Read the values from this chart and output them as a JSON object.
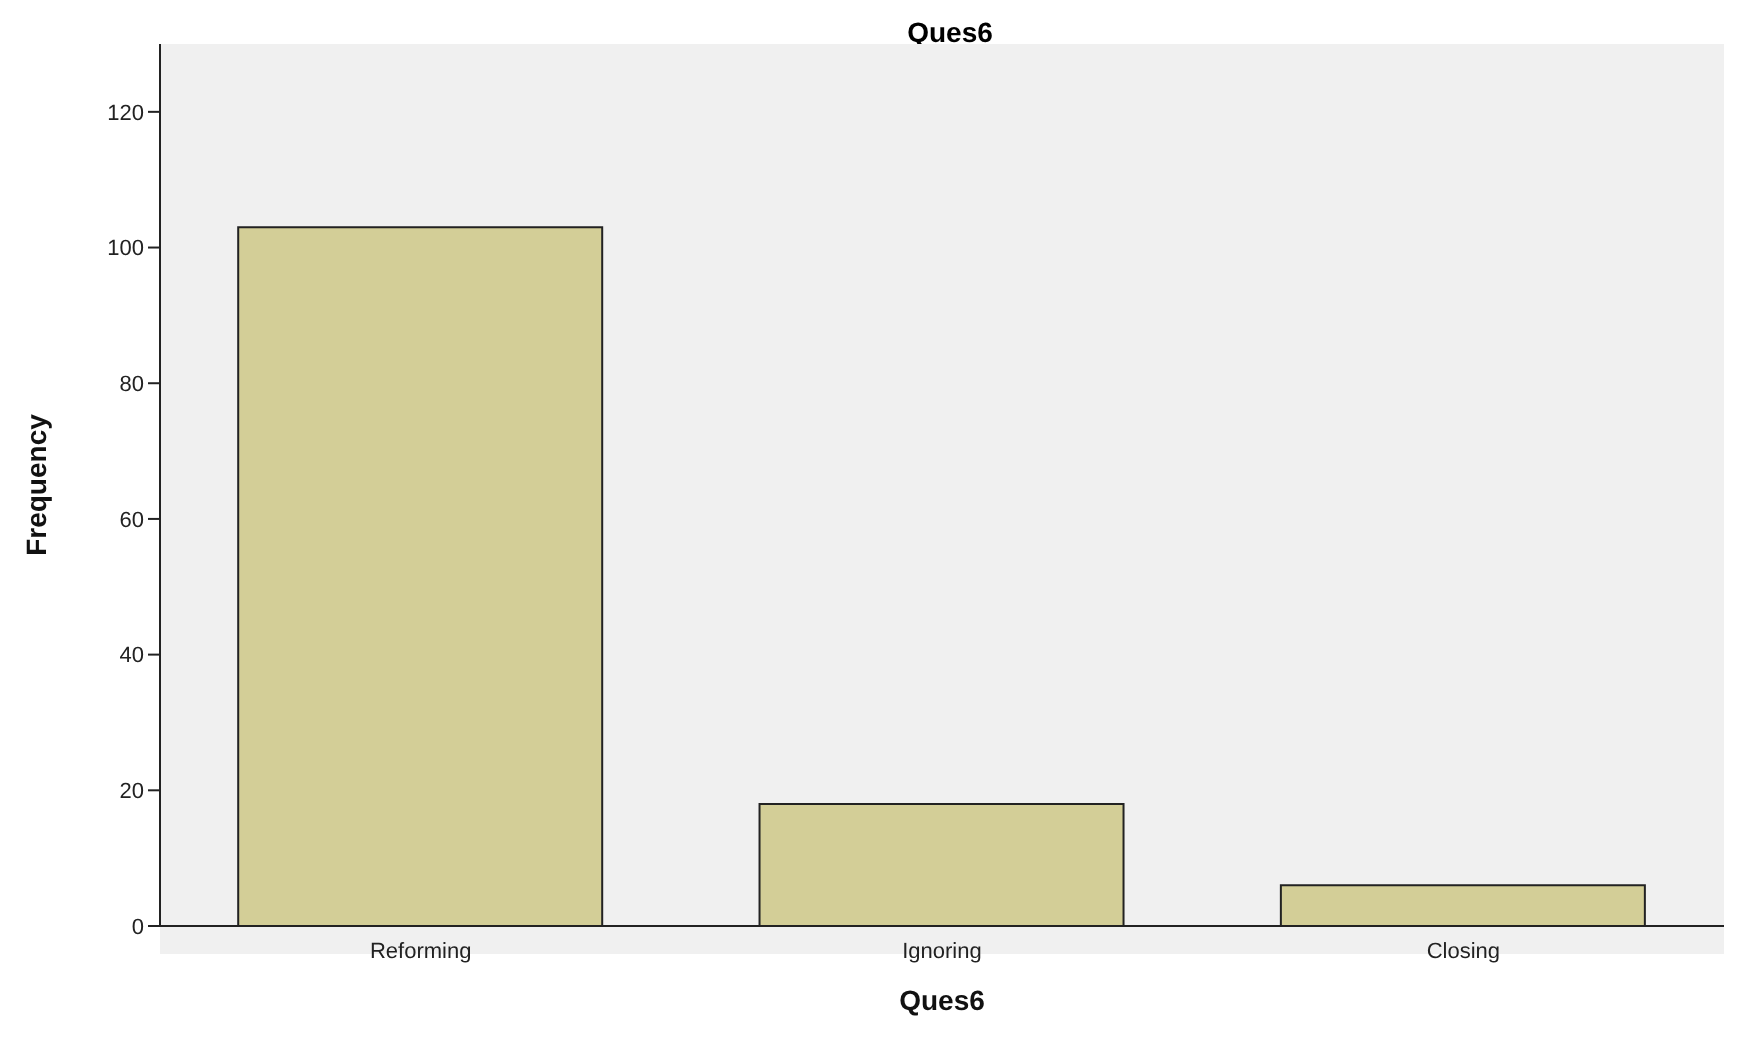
{
  "chart_data": {
    "type": "bar",
    "title": "Ques6",
    "xlabel": "Ques6",
    "ylabel": "Frequency",
    "categories": [
      "Reforming",
      "Ignoring",
      "Closing"
    ],
    "values": [
      103,
      18,
      6
    ],
    "color": "#d3ce97",
    "ylim": [
      0,
      130
    ],
    "yticks": [
      0,
      20,
      40,
      60,
      80,
      100,
      120
    ],
    "grid": false
  }
}
